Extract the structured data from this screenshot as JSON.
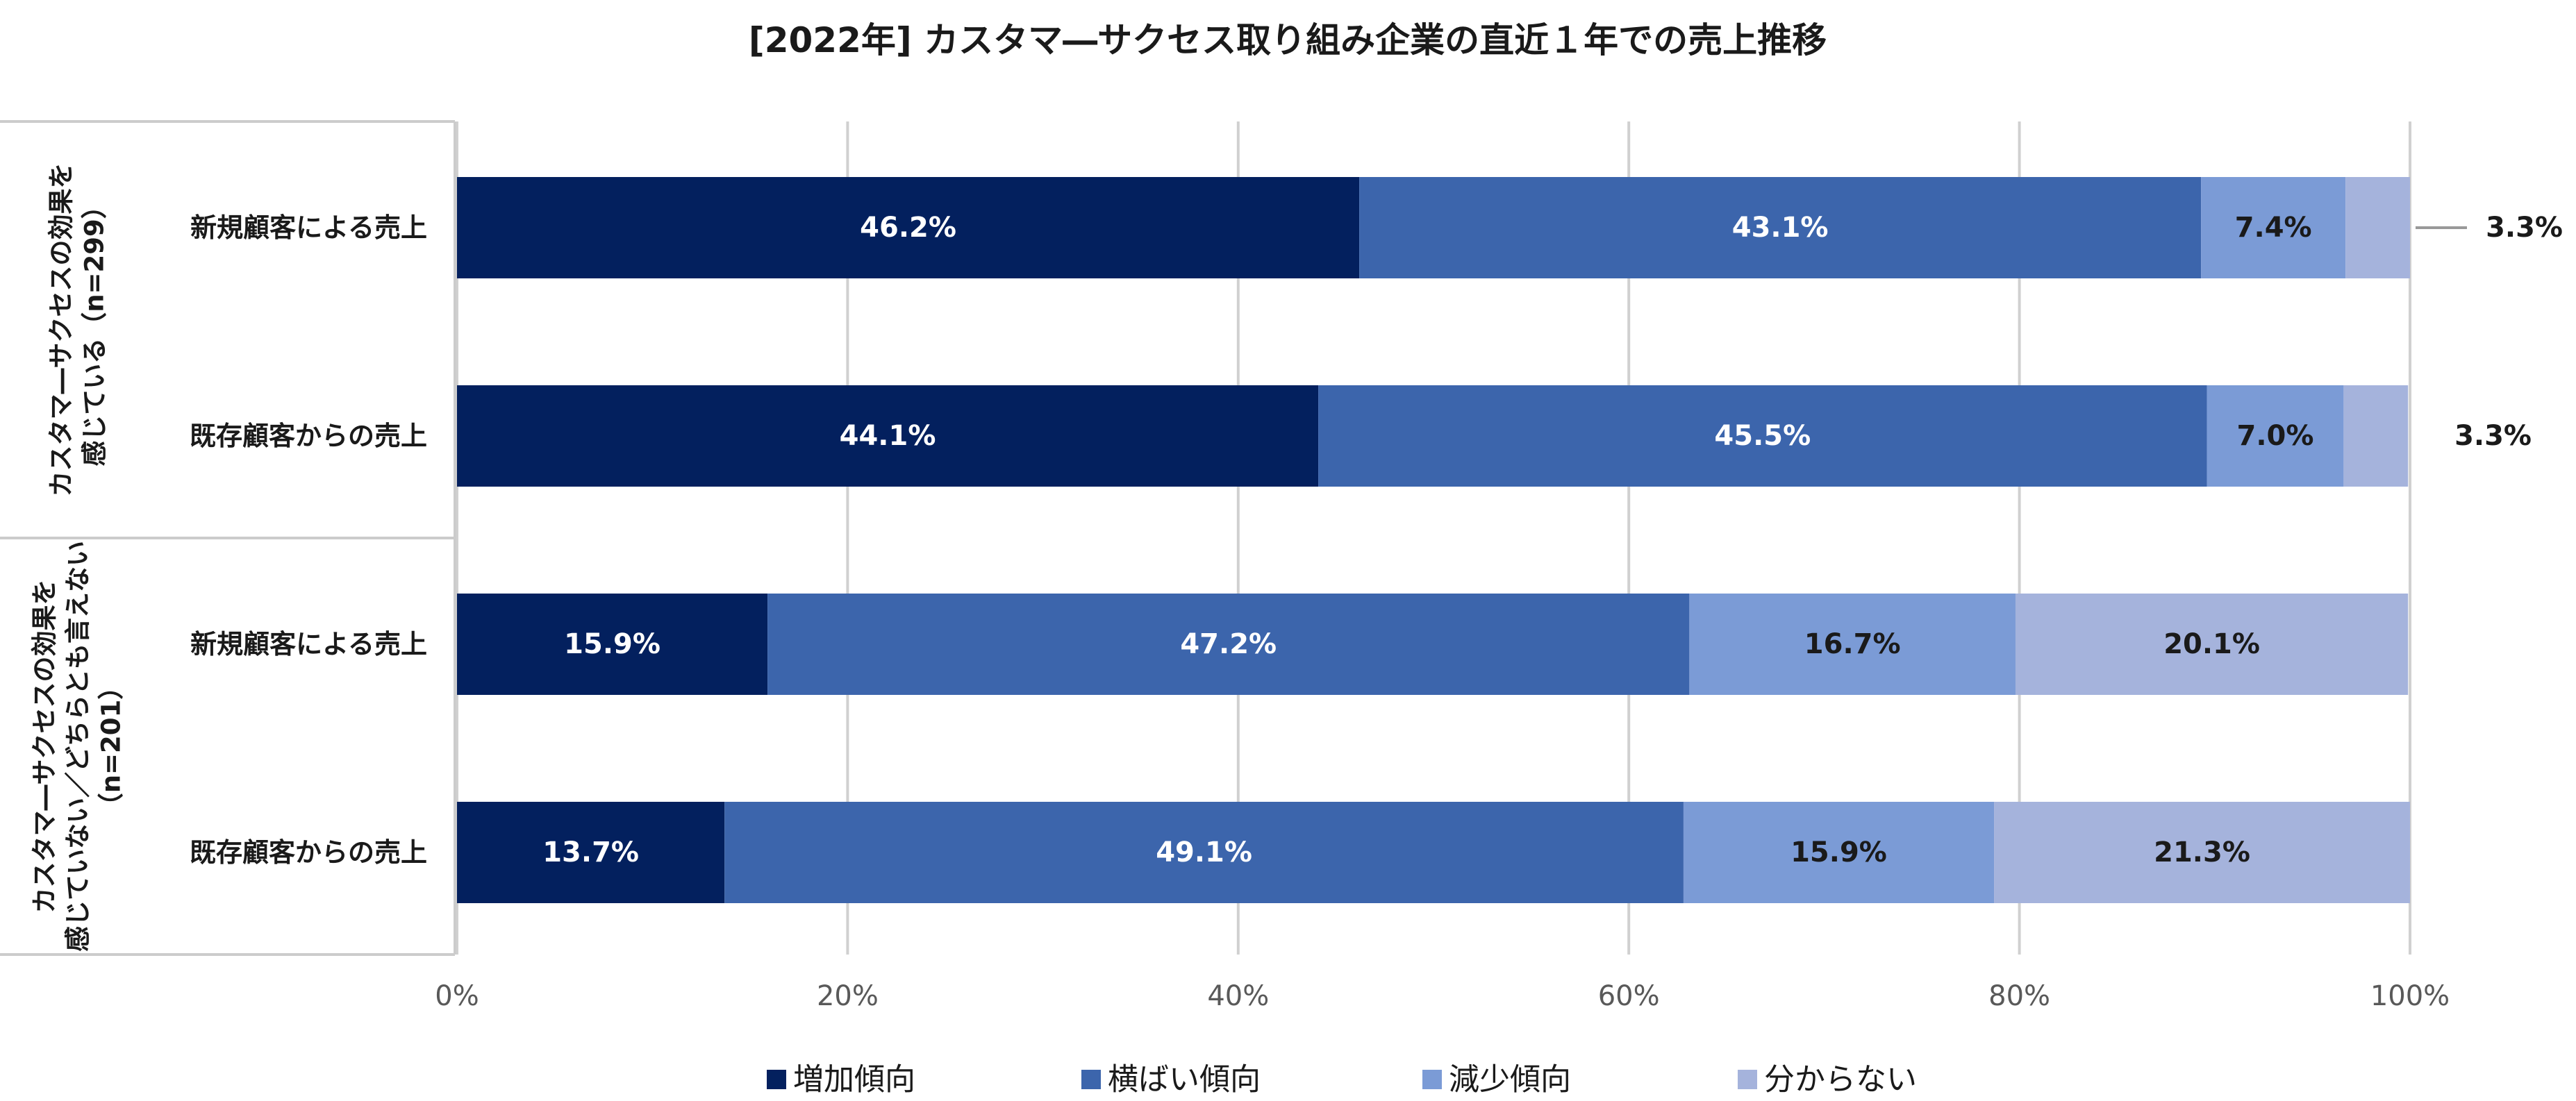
{
  "chart_data": {
    "type": "bar",
    "orientation": "horizontal",
    "stacked": true,
    "percent": true,
    "title": "[2022年] カスタマ―サクセス取り組み企業の直近１年での売上推移",
    "xlim": [
      0,
      100
    ],
    "xticks": [
      "0%",
      "20%",
      "40%",
      "60%",
      "80%",
      "100%"
    ],
    "grid": true,
    "legend_position": "bottom",
    "groups": [
      {
        "label": "カスタマ―サクセスの効果を感じている（n=299）"
      },
      {
        "label": "カスタマ―サクセスの効果を感じていない／どちらとも言えない（n=201）"
      }
    ],
    "categories": [
      "新規顧客による売上",
      "既存顧客からの売上",
      "新規顧客による売上",
      "既存顧客からの売上"
    ],
    "series": [
      {
        "name": "増加傾向",
        "color": "#03205e",
        "values": [
          46.2,
          44.1,
          15.9,
          13.7
        ],
        "labels": [
          "46.2%",
          "44.1%",
          "15.9%",
          "13.7%"
        ]
      },
      {
        "name": "横ばい傾向",
        "color": "#3c65ac",
        "values": [
          43.1,
          45.5,
          47.2,
          49.1
        ],
        "labels": [
          "43.1%",
          "45.5%",
          "47.2%",
          "49.1%"
        ]
      },
      {
        "name": "減少傾向",
        "color": "#7b9bd6",
        "values": [
          7.4,
          7.0,
          16.7,
          15.9
        ],
        "labels": [
          "7.4%",
          "7.0%",
          "16.7%",
          "15.9%"
        ]
      },
      {
        "name": "分からない",
        "color": "#a5b3dc",
        "values": [
          3.3,
          3.3,
          20.1,
          21.3
        ],
        "labels": [
          "3.3%",
          "3.3%",
          "20.1%",
          "21.3%"
        ]
      }
    ]
  }
}
